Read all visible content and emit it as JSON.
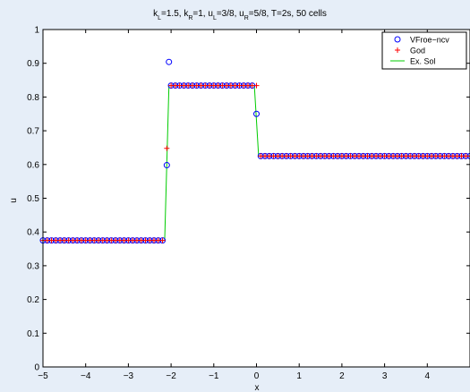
{
  "chart_data": {
    "type": "scatter",
    "title_parts": [
      {
        "t": "k",
        "s": "n"
      },
      {
        "t": "L",
        "s": "sub"
      },
      {
        "t": "=1.5, k",
        "s": "n"
      },
      {
        "t": "R",
        "s": "sub"
      },
      {
        "t": "=1, u",
        "s": "n"
      },
      {
        "t": "L",
        "s": "sub"
      },
      {
        "t": "=3/8, u",
        "s": "n"
      },
      {
        "t": "R",
        "s": "sub"
      },
      {
        "t": "=5/8, T=2s, 50 cells",
        "s": "n"
      }
    ],
    "xlabel": "x",
    "ylabel": "u",
    "xlim": [
      -5,
      5
    ],
    "ylim": [
      0,
      1
    ],
    "xticks": [
      -5,
      -4,
      -3,
      -2,
      -1,
      0,
      1,
      2,
      3,
      4
    ],
    "xtick_labels": [
      "−5",
      "−4",
      "−3",
      "−2",
      "−1",
      "0",
      "1",
      "2",
      "3",
      "4"
    ],
    "yticks": [
      0,
      0.1,
      0.2,
      0.3,
      0.4,
      0.5,
      0.6,
      0.7,
      0.8,
      0.9,
      1
    ],
    "ytick_labels": [
      "0",
      "0.1",
      "0.2",
      "0.3",
      "0.4",
      "0.5",
      "0.6",
      "0.7",
      "0.8",
      "0.9",
      "1"
    ],
    "grid": false,
    "legend_position": "top-right",
    "series": [
      {
        "name": "VFroe−ncv",
        "marker": "circle",
        "color": "#0000ff",
        "plateaus": [
          {
            "from": -5.0,
            "to": -2.2,
            "step": 0.1,
            "y": 0.375
          },
          {
            "from": -2.0,
            "to": -0.1,
            "step": 0.1,
            "y": 0.834
          },
          {
            "from": 0.1,
            "to": 5.0,
            "step": 0.1,
            "y": 0.625
          }
        ],
        "points": [
          {
            "x": -2.1,
            "y": 0.598
          },
          {
            "x": -2.05,
            "y": 0.904
          },
          {
            "x": 0.0,
            "y": 0.75
          }
        ]
      },
      {
        "name": "God",
        "marker": "plus",
        "color": "#ff0000",
        "plateaus": [
          {
            "from": -5.0,
            "to": -2.2,
            "step": 0.1,
            "y": 0.375
          },
          {
            "from": -2.0,
            "to": -0.1,
            "step": 0.1,
            "y": 0.834
          },
          {
            "from": 0.1,
            "to": 5.0,
            "step": 0.1,
            "y": 0.625
          }
        ],
        "points": [
          {
            "x": -2.1,
            "y": 0.648
          },
          {
            "x": 0.0,
            "y": 0.834
          }
        ]
      },
      {
        "name": "Ex. Sol",
        "marker": "line",
        "color": "#00cc00",
        "x": [
          -5,
          -2.15,
          -2.05,
          -0.05,
          0.05,
          5
        ],
        "y": [
          0.375,
          0.375,
          0.834,
          0.834,
          0.625,
          0.625
        ]
      }
    ]
  }
}
